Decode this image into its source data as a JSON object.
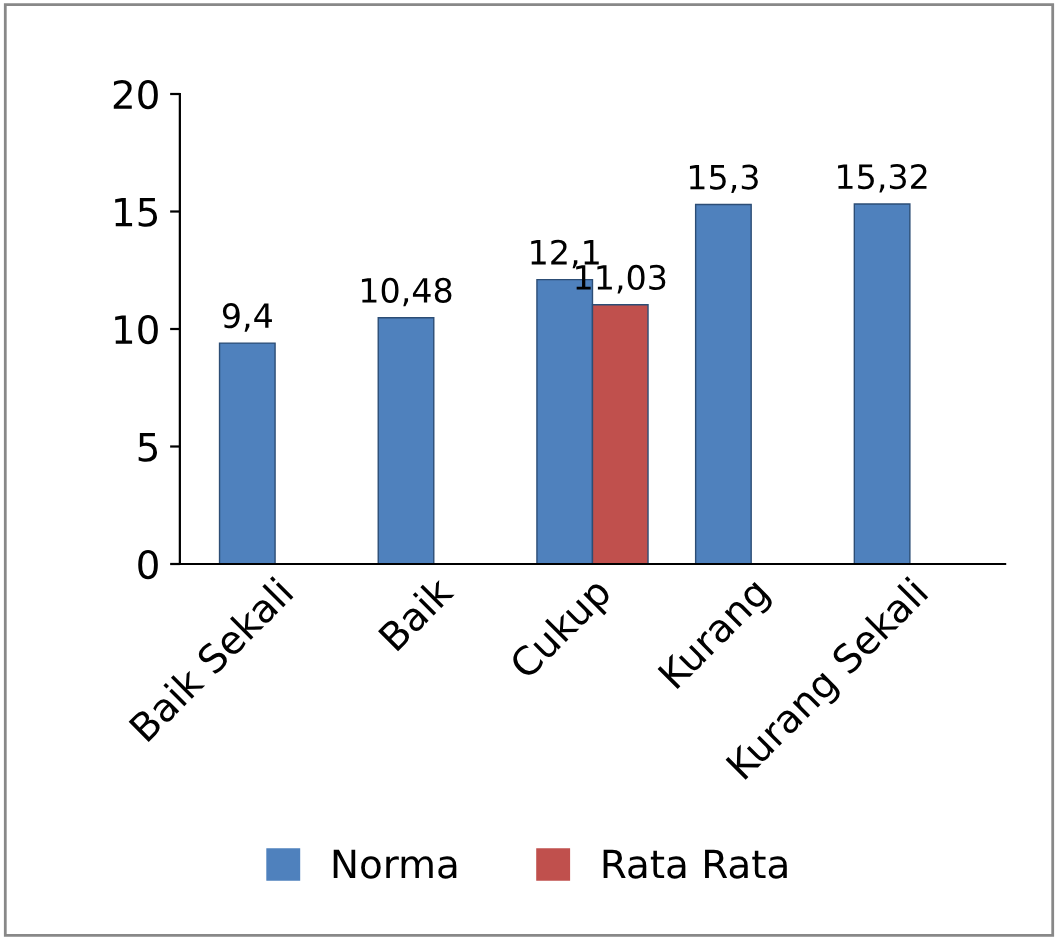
{
  "chart_data": {
    "type": "bar",
    "categories": [
      "Baik Sekali",
      "Baik",
      "Cukup",
      "Kurang",
      "Kurang Sekali"
    ],
    "series": [
      {
        "name": "Norma",
        "color": "#4f81bd",
        "values": [
          9.4,
          10.48,
          12.1,
          15.3,
          15.32
        ],
        "value_labels": [
          "9,4",
          "10,48",
          "12,1",
          "15,3",
          "15,32"
        ]
      },
      {
        "name": "Rata Rata",
        "color": "#c0504d",
        "values": [
          null,
          null,
          11.03,
          null,
          null
        ],
        "value_labels": [
          null,
          null,
          "11,03",
          null,
          null
        ]
      }
    ],
    "ylim": [
      0,
      20
    ],
    "yticks": [
      0,
      5,
      10,
      15,
      20
    ],
    "grid": false,
    "legend": "bottom"
  }
}
